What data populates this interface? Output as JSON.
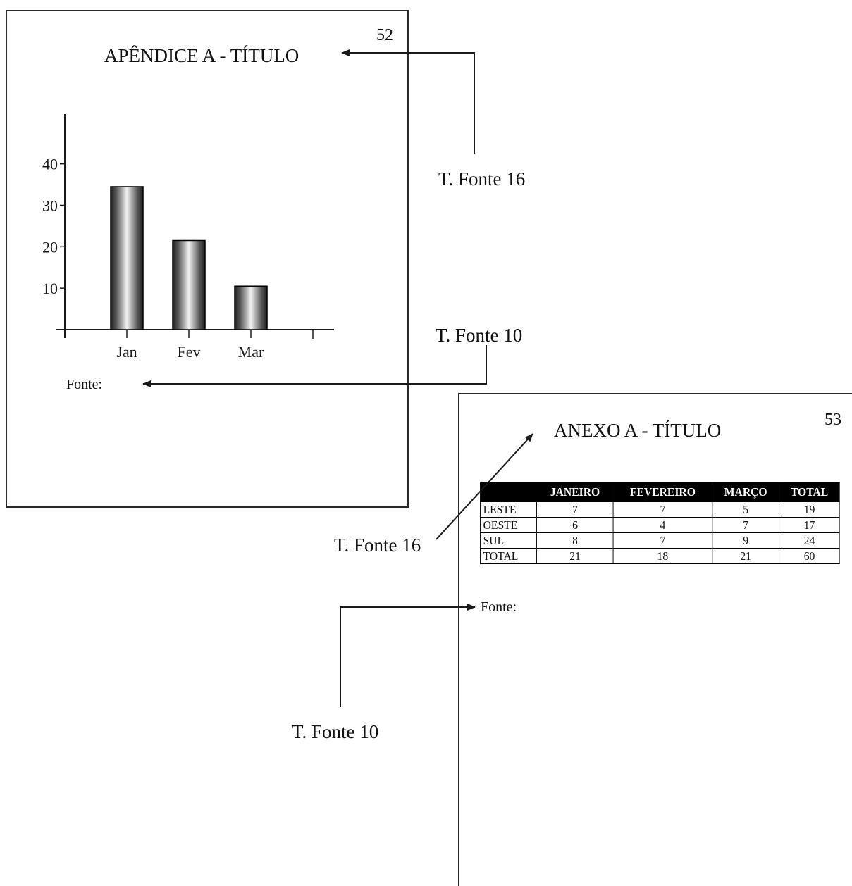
{
  "page52": {
    "page_number": "52",
    "title": "APÊNDICE A - TÍTULO",
    "source_label": "Fonte:"
  },
  "chart_data": {
    "type": "bar",
    "categories": [
      "Jan",
      "Fev",
      "Mar"
    ],
    "values": [
      34.5,
      21.5,
      10.5
    ],
    "title": "",
    "xlabel": "",
    "ylabel": "",
    "yticks": [
      10,
      20,
      30,
      40
    ],
    "ylim": [
      0,
      52
    ],
    "bar_fill": "#000000",
    "grid": false
  },
  "page53": {
    "page_number": "53",
    "title": "ANEXO A - TÍTULO",
    "source_label": "Fonte:",
    "table": {
      "headers": [
        "",
        "JANEIRO",
        "FEVEREIRO",
        "MARÇO",
        "TOTAL"
      ],
      "rows": [
        [
          "LESTE",
          "7",
          "7",
          "5",
          "19"
        ],
        [
          "OESTE",
          "6",
          "4",
          "7",
          "17"
        ],
        [
          "SUL",
          "8",
          "7",
          "9",
          "24"
        ],
        [
          "TOTAL",
          "21",
          "18",
          "21",
          "60"
        ]
      ]
    }
  },
  "annotations": {
    "title_font_top": "T. Fonte 16",
    "source_font_top": "T. Fonte 10",
    "title_font_bottom": "T. Fonte 16",
    "source_font_bottom": "T. Fonte 10"
  },
  "colors": {
    "line": "#1a1a1a",
    "header_bg": "#000000",
    "header_text": "#ffffff"
  }
}
